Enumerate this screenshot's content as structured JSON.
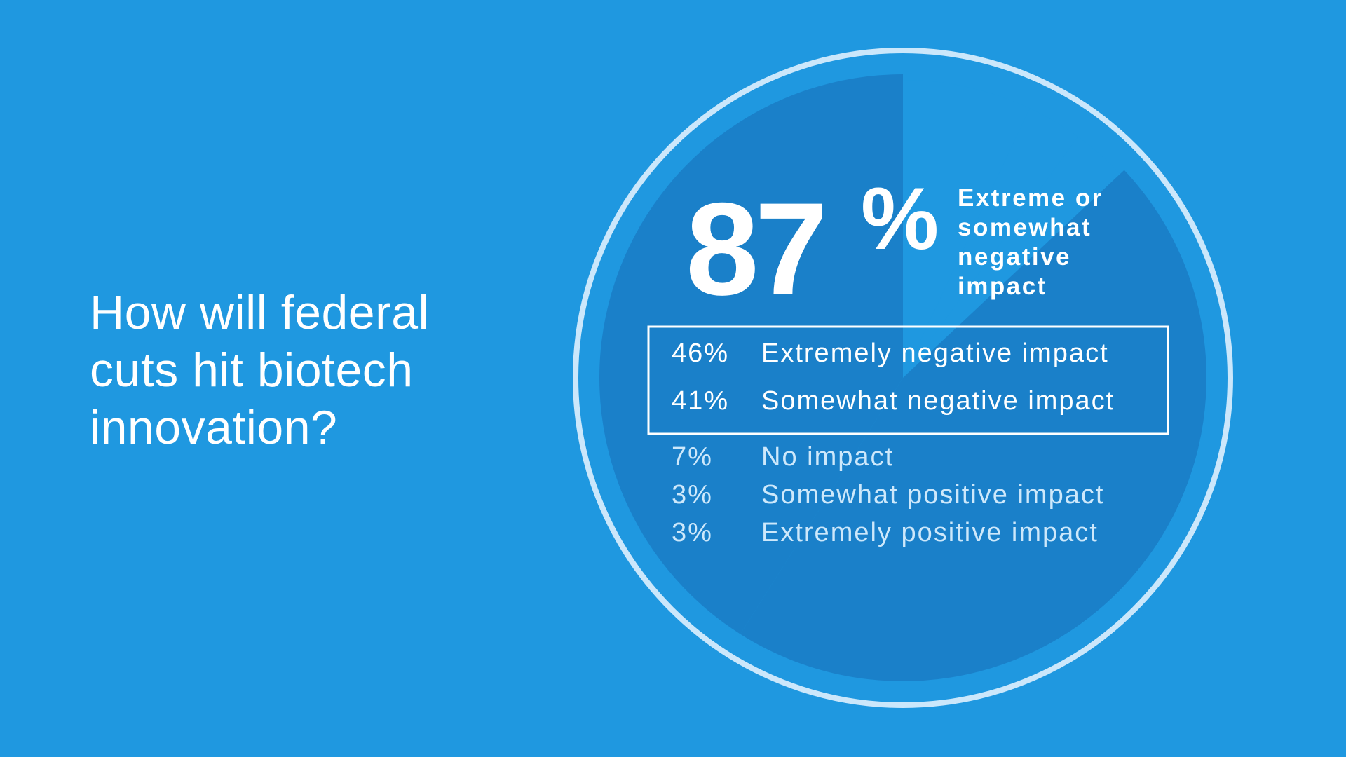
{
  "headline": "How will federal cuts hit biotech innovation?",
  "colors": {
    "background": "#1f98e0",
    "slice_light": "#1f98e0",
    "slice_dark": "#1a80c9",
    "ring": "#cbe7fb",
    "text": "#ffffff",
    "muted_text": "#cde8fb"
  },
  "chart_data": {
    "type": "pie",
    "title": "How will federal cuts hit biotech innovation?",
    "start_angle_deg": 0,
    "direction": "clockwise",
    "slices": [
      {
        "label": "No impact",
        "value": 7,
        "display": "7%",
        "highlighted": false
      },
      {
        "label": "Somewhat positive impact",
        "value": 3,
        "display": "3%",
        "highlighted": false
      },
      {
        "label": "Extremely positive impact",
        "value": 3,
        "display": "3%",
        "highlighted": false
      },
      {
        "label": "Extremely negative impact",
        "value": 46,
        "display": "46%",
        "highlighted": true
      },
      {
        "label": "Somewhat negative impact",
        "value": 41,
        "display": "41%",
        "highlighted": true
      }
    ],
    "summary": {
      "number": "87",
      "unit": "%",
      "label_lines": [
        "Extreme or",
        "somewhat",
        "negative",
        "impact"
      ]
    },
    "legend": {
      "boxed": [
        {
          "pct": "46%",
          "label": "Extremely negative impact"
        },
        {
          "pct": "41%",
          "label": "Somewhat negative impact"
        }
      ],
      "plain": [
        {
          "pct": "7%",
          "label": "No impact"
        },
        {
          "pct": "3%",
          "label": "Somewhat positive impact"
        },
        {
          "pct": "3%",
          "label": "Extremely positive impact"
        }
      ]
    }
  }
}
